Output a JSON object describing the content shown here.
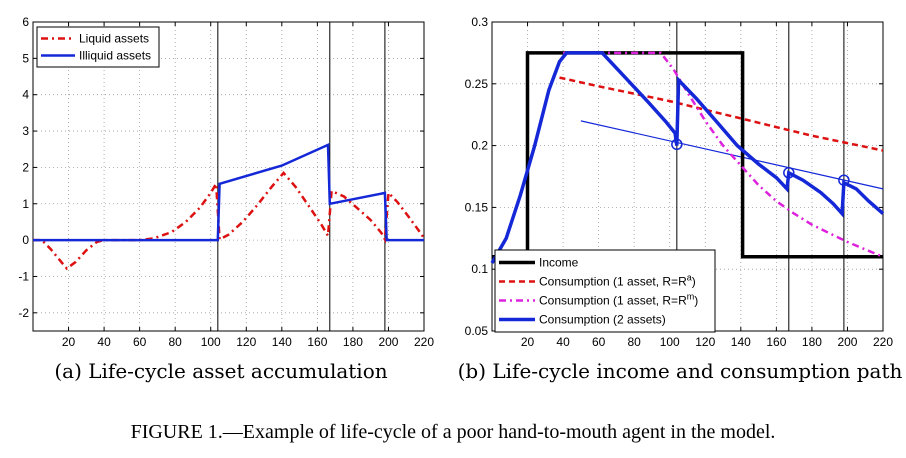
{
  "figure_caption": "FIGURE 1.—Example of life-cycle of a poor hand-to-mouth agent in the model.",
  "chart_data": [
    {
      "type": "line",
      "caption": "(a) Life-cycle asset accumulation",
      "xlim": [
        0,
        220
      ],
      "ylim": [
        -2.5,
        6
      ],
      "x_ticks": [
        20,
        40,
        60,
        80,
        100,
        120,
        140,
        160,
        180,
        200,
        220
      ],
      "y_ticks": [
        -2,
        -1,
        0,
        1,
        2,
        3,
        4,
        5,
        6
      ],
      "grid": true,
      "legend_position": "top-left",
      "vlines": [
        104,
        167,
        198
      ],
      "series": [
        {
          "name": "Liquid assets",
          "color": "#dd1111",
          "style": "dashdot",
          "points": [
            [
              0,
              0
            ],
            [
              5,
              0
            ],
            [
              10,
              -0.25
            ],
            [
              15,
              -0.55
            ],
            [
              19,
              -0.78
            ],
            [
              24,
              -0.6
            ],
            [
              30,
              -0.28
            ],
            [
              36,
              -0.05
            ],
            [
              40,
              0
            ],
            [
              60,
              0
            ],
            [
              68,
              0.05
            ],
            [
              78,
              0.22
            ],
            [
              86,
              0.5
            ],
            [
              94,
              0.9
            ],
            [
              100,
              1.3
            ],
            [
              103,
              1.55
            ],
            [
              105,
              0.02
            ],
            [
              110,
              0.15
            ],
            [
              118,
              0.5
            ],
            [
              126,
              0.95
            ],
            [
              134,
              1.45
            ],
            [
              141,
              1.85
            ],
            [
              148,
              1.45
            ],
            [
              155,
              0.95
            ],
            [
              162,
              0.45
            ],
            [
              166,
              0.12
            ],
            [
              168,
              1.35
            ],
            [
              175,
              1.2
            ],
            [
              182,
              0.9
            ],
            [
              190,
              0.55
            ],
            [
              196,
              0.2
            ],
            [
              198,
              0.02
            ],
            [
              200,
              1.3
            ],
            [
              205,
              1.05
            ],
            [
              212,
              0.6
            ],
            [
              218,
              0.2
            ],
            [
              220,
              0.05
            ]
          ]
        },
        {
          "name": "Illiquid assets",
          "color": "#1428d8",
          "style": "solid",
          "points": [
            [
              0,
              0
            ],
            [
              104,
              0
            ],
            [
              105,
              1.55
            ],
            [
              140,
              2.05
            ],
            [
              166,
              2.62
            ],
            [
              167,
              1.0
            ],
            [
              198,
              1.3
            ],
            [
              199,
              0
            ],
            [
              220,
              0
            ]
          ]
        }
      ]
    },
    {
      "type": "line",
      "caption": "(b) Life-cycle income and consumption path",
      "xlim": [
        0,
        220
      ],
      "ylim": [
        0.05,
        0.3
      ],
      "x_ticks": [
        20,
        40,
        60,
        80,
        100,
        120,
        140,
        160,
        180,
        200,
        220
      ],
      "y_ticks": [
        0.05,
        0.1,
        0.15,
        0.2,
        0.25,
        0.3
      ],
      "grid": true,
      "legend_position": "bottom-left",
      "vlines": [
        104,
        167,
        198
      ],
      "series": [
        {
          "name": "Income",
          "color": "#000000",
          "style": "solid-thick",
          "points": [
            [
              0,
              0.11
            ],
            [
              20,
              0.11
            ],
            [
              20,
              0.275
            ],
            [
              141,
              0.275
            ],
            [
              141,
              0.11
            ],
            [
              220,
              0.11
            ]
          ]
        },
        {
          "name": "Consumption (1 asset, R=R^a)",
          "color": "#dd1111",
          "style": "dashed",
          "points": [
            [
              38,
              0.255
            ],
            [
              60,
              0.248
            ],
            [
              80,
              0.242
            ],
            [
              100,
              0.236
            ],
            [
              120,
              0.229
            ],
            [
              140,
              0.222
            ],
            [
              160,
              0.215
            ],
            [
              180,
              0.208
            ],
            [
              200,
              0.202
            ],
            [
              220,
              0.196
            ]
          ]
        },
        {
          "name": "Consumption (1 asset, R=R^m)",
          "color": "#dd22dd",
          "style": "dashdot",
          "points": [
            [
              40,
              0.275
            ],
            [
              95,
              0.275
            ],
            [
              102,
              0.262
            ],
            [
              110,
              0.243
            ],
            [
              120,
              0.22
            ],
            [
              130,
              0.2
            ],
            [
              140,
              0.184
            ],
            [
              150,
              0.168
            ],
            [
              160,
              0.155
            ],
            [
              170,
              0.145
            ],
            [
              180,
              0.136
            ],
            [
              190,
              0.129
            ],
            [
              200,
              0.122
            ],
            [
              210,
              0.116
            ],
            [
              220,
              0.11
            ]
          ]
        },
        {
          "name": "Consumption (2 assets)",
          "color": "#1428d8",
          "style": "solid-thick",
          "points": [
            [
              0,
              0.105
            ],
            [
              8,
              0.125
            ],
            [
              16,
              0.16
            ],
            [
              24,
              0.2
            ],
            [
              32,
              0.245
            ],
            [
              38,
              0.268
            ],
            [
              42,
              0.275
            ],
            [
              62,
              0.275
            ],
            [
              75,
              0.255
            ],
            [
              88,
              0.235
            ],
            [
              98,
              0.219
            ],
            [
              103,
              0.21
            ],
            [
              104,
              0.2
            ],
            [
              105,
              0.253
            ],
            [
              115,
              0.238
            ],
            [
              126,
              0.22
            ],
            [
              138,
              0.2
            ],
            [
              150,
              0.185
            ],
            [
              160,
              0.174
            ],
            [
              166,
              0.165
            ],
            [
              167,
              0.178
            ],
            [
              175,
              0.172
            ],
            [
              185,
              0.162
            ],
            [
              192,
              0.153
            ],
            [
              197,
              0.145
            ],
            [
              198,
              0.17
            ],
            [
              205,
              0.165
            ],
            [
              212,
              0.155
            ],
            [
              220,
              0.145
            ]
          ]
        }
      ],
      "reference_line": {
        "color": "#1428d8",
        "points": [
          [
            50,
            0.22
          ],
          [
            220,
            0.165
          ]
        ]
      },
      "markers": [
        [
          104,
          0.201
        ],
        [
          167,
          0.178
        ],
        [
          198,
          0.172
        ]
      ]
    }
  ]
}
